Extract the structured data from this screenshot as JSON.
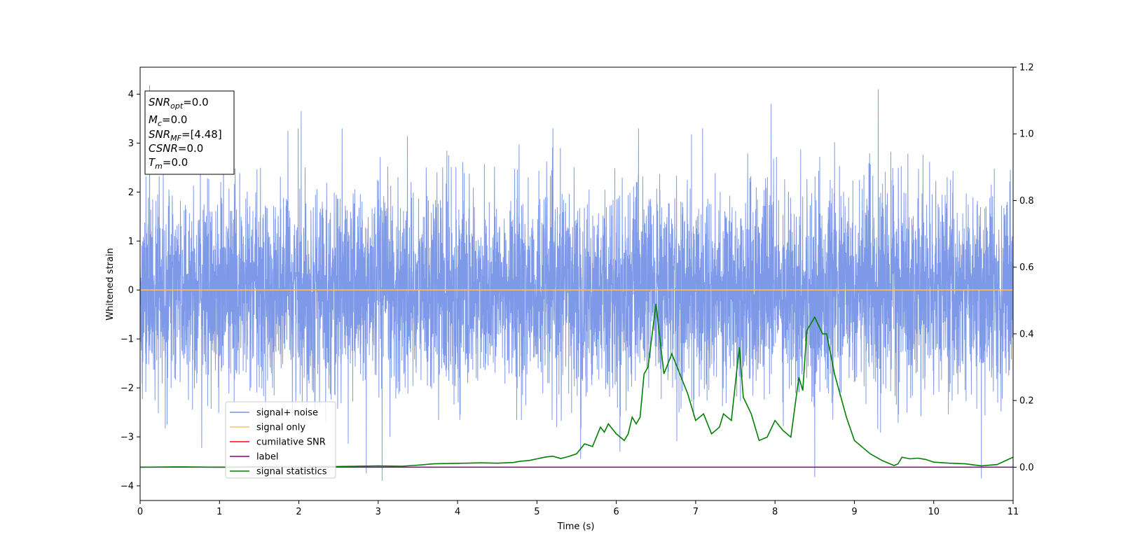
{
  "chart_data": {
    "type": "line",
    "xlabel": "Time (s)",
    "ylabel": "Whitened strain",
    "xlim": [
      0,
      11
    ],
    "ylim": [
      -4.3,
      4.55
    ],
    "y2lim": [
      -0.1,
      1.2
    ],
    "x_ticks": [
      "0",
      "1",
      "2",
      "3",
      "4",
      "5",
      "6",
      "7",
      "8",
      "9",
      "10",
      "11"
    ],
    "y_ticks": [
      "4",
      "3",
      "2",
      "1",
      "0",
      "−1",
      "−2",
      "−3",
      "−4"
    ],
    "y2_ticks": [
      "1.2",
      "1.0",
      "0.8",
      "0.6",
      "0.4",
      "0.2",
      "0.0"
    ],
    "grid": false,
    "legend_position": "lower-left",
    "annotation": {
      "lines": [
        {
          "key": "SNR",
          "sub": "opt",
          "value": "=0.0"
        },
        {
          "key": "M",
          "sub": "c",
          "value": "=0.0"
        },
        {
          "key": "SNR",
          "sub": "MF",
          "value": "=[4.48]"
        },
        {
          "key": "CSNR",
          "sub": "",
          "value": "=0.0"
        },
        {
          "key": "T",
          "sub": "m",
          "value": "=0.0"
        }
      ]
    },
    "series": [
      {
        "name": "signal+ noise",
        "color": "#7893e8",
        "axis": "left",
        "note": "dense Gaussian noise trace, std about 1, spanning x 0 to 11",
        "sample_extremes": [
          [
            0.12,
            4.18
          ],
          [
            2.03,
            3.65
          ],
          [
            9.3,
            4.1
          ],
          [
            7.95,
            3.8
          ],
          [
            3.05,
            -3.9
          ],
          [
            8.5,
            -3.82
          ],
          [
            10.6,
            -3.85
          ],
          [
            2.85,
            -3.75
          ],
          [
            5.55,
            -3.45
          ]
        ]
      },
      {
        "name": "signal only",
        "color": "#f5c26b",
        "axis": "left",
        "x": [
          0,
          11
        ],
        "y": [
          0,
          0
        ]
      },
      {
        "name": "cumilative SNR",
        "color": "#ff0000",
        "axis": "left",
        "x": [],
        "y": []
      },
      {
        "name": "label",
        "color": "#800080",
        "axis": "right",
        "x": [
          0,
          11
        ],
        "y": [
          0.0,
          0.0
        ]
      },
      {
        "name": "signal statistics",
        "color": "#008000",
        "axis": "right",
        "x": [
          0,
          0.5,
          1.0,
          1.5,
          2.0,
          2.5,
          3.0,
          3.3,
          3.5,
          3.7,
          3.9,
          4.1,
          4.3,
          4.5,
          4.7,
          4.8,
          4.9,
          5.0,
          5.1,
          5.2,
          5.3,
          5.4,
          5.5,
          5.6,
          5.7,
          5.8,
          5.85,
          5.9,
          6.0,
          6.1,
          6.15,
          6.2,
          6.25,
          6.3,
          6.35,
          6.4,
          6.5,
          6.6,
          6.7,
          6.8,
          6.9,
          7.0,
          7.1,
          7.2,
          7.3,
          7.35,
          7.45,
          7.55,
          7.6,
          7.7,
          7.8,
          7.9,
          8.0,
          8.1,
          8.2,
          8.3,
          8.35,
          8.4,
          8.45,
          8.5,
          8.6,
          8.65,
          8.75,
          8.9,
          9.0,
          9.1,
          9.2,
          9.35,
          9.5,
          9.55,
          9.6,
          9.7,
          9.8,
          9.9,
          10.0,
          10.2,
          10.4,
          10.6,
          10.8,
          11.0
        ],
        "y": [
          0.0,
          0.001,
          0.0,
          0.001,
          0.0,
          0.002,
          0.004,
          0.003,
          0.006,
          0.01,
          0.011,
          0.012,
          0.013,
          0.012,
          0.014,
          0.018,
          0.02,
          0.025,
          0.03,
          0.033,
          0.026,
          0.032,
          0.04,
          0.07,
          0.062,
          0.12,
          0.105,
          0.13,
          0.1,
          0.08,
          0.1,
          0.15,
          0.13,
          0.15,
          0.28,
          0.3,
          0.49,
          0.28,
          0.34,
          0.28,
          0.22,
          0.14,
          0.16,
          0.1,
          0.12,
          0.16,
          0.14,
          0.36,
          0.21,
          0.16,
          0.08,
          0.09,
          0.14,
          0.11,
          0.09,
          0.27,
          0.23,
          0.41,
          0.43,
          0.45,
          0.4,
          0.4,
          0.28,
          0.15,
          0.08,
          0.06,
          0.04,
          0.02,
          0.005,
          0.01,
          0.03,
          0.025,
          0.027,
          0.023,
          0.015,
          0.012,
          0.01,
          0.004,
          0.008,
          0.03
        ]
      }
    ]
  }
}
